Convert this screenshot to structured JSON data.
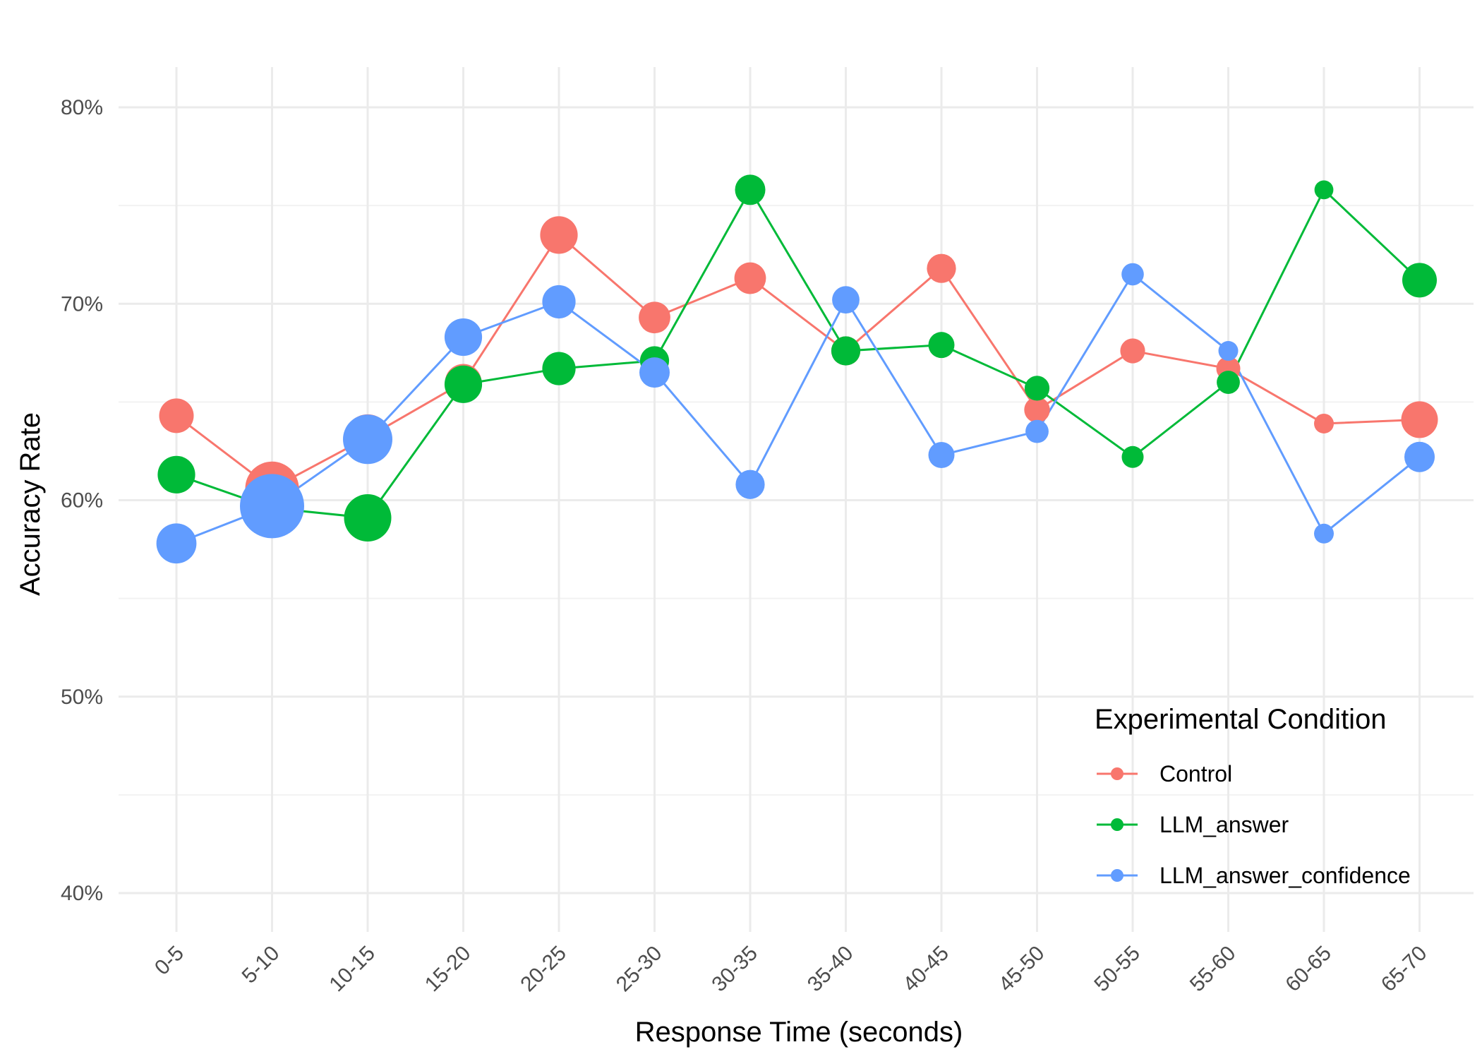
{
  "chart_data": {
    "type": "line",
    "title": "",
    "xlabel": "Response Time (seconds)",
    "ylabel": "Accuracy Rate",
    "categories": [
      "0-5",
      "5-10",
      "10-15",
      "15-20",
      "20-25",
      "25-30",
      "30-35",
      "35-40",
      "40-45",
      "45-50",
      "50-55",
      "55-60",
      "60-65",
      "65-70"
    ],
    "ylim": [
      0.38,
      0.82
    ],
    "yticks": [
      0.4,
      0.5,
      0.6,
      0.7,
      0.8
    ],
    "ytick_labels": [
      "40%",
      "50%",
      "60%",
      "70%",
      "80%"
    ],
    "grid": true,
    "legend": {
      "title": "Experimental Condition",
      "position": "bottom-right-inside"
    },
    "series": [
      {
        "name": "Control",
        "color": "#F8766D",
        "values": [
          0.643,
          0.606,
          0.632,
          0.66,
          0.735,
          0.693,
          0.713,
          0.676,
          0.718,
          0.646,
          0.676,
          0.667,
          0.639,
          0.641
        ],
        "point_sizes": [
          0.55,
          1.0,
          0.82,
          0.6,
          0.62,
          0.48,
          0.48,
          0.42,
          0.42,
          0.34,
          0.32,
          0.3,
          0.2,
          0.6
        ]
      },
      {
        "name": "LLM_answer",
        "color": "#00BA38",
        "values": [
          0.613,
          0.596,
          0.591,
          0.659,
          0.667,
          0.671,
          0.758,
          0.676,
          0.679,
          0.657,
          0.622,
          0.66,
          0.758,
          0.712
        ],
        "point_sizes": [
          0.62,
          0.5,
          0.85,
          0.62,
          0.52,
          0.42,
          0.45,
          0.42,
          0.35,
          0.32,
          0.25,
          0.28,
          0.18,
          0.55
        ]
      },
      {
        "name": "LLM_answer_confidence",
        "color": "#619CFF",
        "values": [
          0.578,
          0.597,
          0.631,
          0.683,
          0.701,
          0.665,
          0.608,
          0.702,
          0.623,
          0.635,
          0.715,
          0.676,
          0.583,
          0.622
        ],
        "point_sizes": [
          0.68,
          1.25,
          0.9,
          0.62,
          0.52,
          0.45,
          0.42,
          0.38,
          0.35,
          0.28,
          0.26,
          0.2,
          0.2,
          0.45
        ]
      }
    ]
  }
}
